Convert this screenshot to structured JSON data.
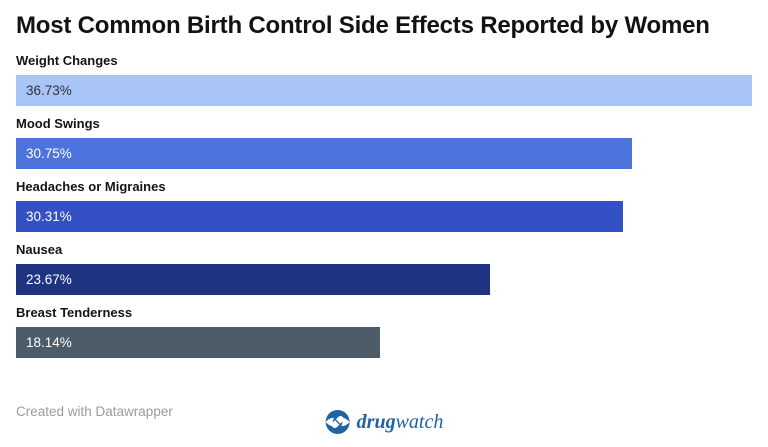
{
  "title": "Most Common Birth Control Side Effects Reported by Women",
  "chart_data": {
    "type": "bar",
    "orientation": "horizontal",
    "categories": [
      "Weight Changes",
      "Mood Swings",
      "Headaches or Migraines",
      "Nausea",
      "Breast Tenderness"
    ],
    "values": [
      36.73,
      30.75,
      30.31,
      23.67,
      18.14
    ],
    "value_labels": [
      "36.73%",
      "30.75%",
      "30.31%",
      "23.67%",
      "18.14%"
    ],
    "xlim": [
      0,
      36.73
    ],
    "grid": false,
    "legend": false,
    "bar_colors": [
      "#a9c4f6",
      "#4d74dc",
      "#3351c5",
      "#1f3383",
      "#4d5c69"
    ],
    "value_label_colors": [
      "#333333",
      "#ffffff",
      "#ffffff",
      "#ffffff",
      "#ffffff"
    ]
  },
  "footer": {
    "attribution": "Created with Datawrapper",
    "logo": {
      "brand_bold": "drug",
      "brand_light": "watch",
      "icon_color": "#2164a3"
    }
  },
  "colors": {
    "background": "#ffffff",
    "title": "#121212",
    "category_label": "#141414",
    "attribution": "#9b9b9b",
    "logo_blue": "#2063a6"
  }
}
